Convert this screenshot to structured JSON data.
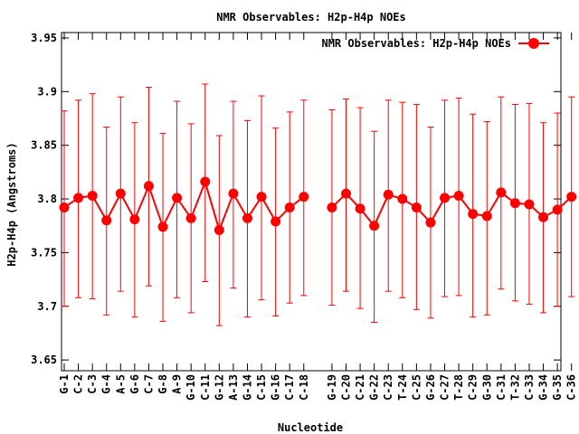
{
  "chart_data": {
    "type": "line",
    "title": "NMR Observables: H2p-H4p NOEs",
    "xlabel": "Nucleotide",
    "ylabel": "H2p-H4p (Angstroms)",
    "ylim": [
      3.64,
      3.955
    ],
    "yticks": [
      "3.65",
      "3.7",
      "3.75",
      "3.8",
      "3.85",
      "3.9",
      "3.95"
    ],
    "ytick_values": [
      3.65,
      3.7,
      3.75,
      3.8,
      3.85,
      3.9,
      3.95
    ],
    "grid": false,
    "legend_position": "top-right",
    "color": "#ff0000",
    "series": [
      {
        "name": "NMR Observables: H2p-H4p NOEs",
        "segments": [
          {
            "labels": [
              "G-1",
              "C-2",
              "C-3",
              "G-4",
              "A-5",
              "G-6",
              "C-7",
              "G-8",
              "A-9",
              "G-10",
              "C-11",
              "G-12",
              "A-13",
              "G-14",
              "C-15",
              "G-16",
              "C-17",
              "C-18"
            ],
            "values": [
              3.792,
              3.801,
              3.803,
              3.78,
              3.805,
              3.781,
              3.812,
              3.774,
              3.801,
              3.782,
              3.816,
              3.771,
              3.805,
              3.782,
              3.802,
              3.779,
              3.792,
              3.802
            ],
            "err_low": [
              3.7,
              3.708,
              3.707,
              3.692,
              3.714,
              3.69,
              3.719,
              3.686,
              3.708,
              3.694,
              3.723,
              3.682,
              3.717,
              3.69,
              3.706,
              3.691,
              3.703,
              3.71
            ],
            "err_high": [
              3.882,
              3.892,
              3.898,
              3.867,
              3.895,
              3.871,
              3.904,
              3.861,
              3.891,
              3.87,
              3.907,
              3.859,
              3.891,
              3.873,
              3.896,
              3.866,
              3.881,
              3.892
            ]
          },
          {
            "labels": [
              "G-19",
              "C-20",
              "C-21",
              "G-22",
              "C-23",
              "T-24",
              "C-25",
              "G-26",
              "C-27",
              "T-28",
              "C-29",
              "G-30",
              "C-31",
              "T-32",
              "C-33",
              "G-34",
              "G-35",
              "C-36"
            ],
            "values": [
              3.792,
              3.805,
              3.791,
              3.775,
              3.804,
              3.8,
              3.792,
              3.778,
              3.801,
              3.803,
              3.786,
              3.784,
              3.806,
              3.796,
              3.795,
              3.783,
              3.79,
              3.802
            ],
            "err_low": [
              3.701,
              3.714,
              3.698,
              3.685,
              3.714,
              3.708,
              3.697,
              3.689,
              3.709,
              3.71,
              3.69,
              3.692,
              3.716,
              3.705,
              3.702,
              3.694,
              3.7,
              3.709
            ],
            "err_high": [
              3.883,
              3.893,
              3.885,
              3.863,
              3.892,
              3.89,
              3.888,
              3.867,
              3.892,
              3.894,
              3.879,
              3.872,
              3.895,
              3.888,
              3.889,
              3.871,
              3.88,
              3.895
            ]
          }
        ]
      }
    ]
  }
}
